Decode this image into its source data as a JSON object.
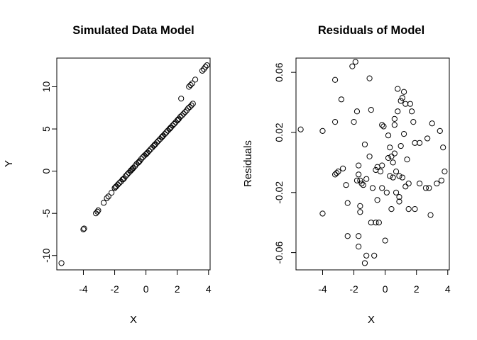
{
  "chart_data": [
    {
      "type": "scatter",
      "title": "Simulated Data Model",
      "xlabel": "X",
      "ylabel": "Y",
      "xlim": [
        -5.7,
        4.1
      ],
      "ylim": [
        -11.7,
        13.4
      ],
      "xticks": [
        -4,
        -2,
        0,
        2,
        4
      ],
      "yticks": [
        -10,
        -5,
        0,
        5,
        10
      ],
      "xticklabels": [
        "-4",
        "-2",
        "0",
        "2",
        "4"
      ],
      "yticklabels": [
        "-10",
        "-5",
        "0",
        "5",
        "10"
      ],
      "grid": false,
      "points": [
        [
          -5.4,
          -10.9
        ],
        [
          -4.0,
          -6.9
        ],
        [
          -3.95,
          -6.8
        ],
        [
          -3.2,
          -5.0
        ],
        [
          -3.1,
          -4.8
        ],
        [
          -3.05,
          -4.65
        ],
        [
          -2.7,
          -3.75
        ],
        [
          -2.5,
          -3.2
        ],
        [
          -2.4,
          -3.0
        ],
        [
          -2.2,
          -2.55
        ],
        [
          -2.0,
          -2.0
        ],
        [
          -1.9,
          -1.8
        ],
        [
          -1.8,
          -1.6
        ],
        [
          -1.7,
          -1.4
        ],
        [
          -1.6,
          -1.25
        ],
        [
          -1.5,
          -1.0
        ],
        [
          -1.4,
          -0.85
        ],
        [
          -1.3,
          -0.6
        ],
        [
          -1.2,
          -0.4
        ],
        [
          -1.1,
          -0.2
        ],
        [
          -1.0,
          0.0
        ],
        [
          -0.9,
          0.2
        ],
        [
          -0.8,
          0.4
        ],
        [
          -0.7,
          0.6
        ],
        [
          -0.6,
          0.85
        ],
        [
          -0.5,
          1.0
        ],
        [
          -0.4,
          1.2
        ],
        [
          -0.3,
          1.45
        ],
        [
          -0.2,
          1.65
        ],
        [
          -0.1,
          1.85
        ],
        [
          0.0,
          2.0
        ],
        [
          0.1,
          2.2
        ],
        [
          0.2,
          2.4
        ],
        [
          0.3,
          2.6
        ],
        [
          0.4,
          2.8
        ],
        [
          0.5,
          3.0
        ],
        [
          0.6,
          3.2
        ],
        [
          0.7,
          3.4
        ],
        [
          0.8,
          3.6
        ],
        [
          0.9,
          3.8
        ],
        [
          1.0,
          4.0
        ],
        [
          1.1,
          4.2
        ],
        [
          1.2,
          4.4
        ],
        [
          1.3,
          4.6
        ],
        [
          1.4,
          4.8
        ],
        [
          1.5,
          5.0
        ],
        [
          1.6,
          5.2
        ],
        [
          1.7,
          5.4
        ],
        [
          1.8,
          5.6
        ],
        [
          1.9,
          5.8
        ],
        [
          2.0,
          6.0
        ],
        [
          2.1,
          6.2
        ],
        [
          2.2,
          6.45
        ],
        [
          2.3,
          6.6
        ],
        [
          2.4,
          6.8
        ],
        [
          2.5,
          7.0
        ],
        [
          2.6,
          7.2
        ],
        [
          2.7,
          7.45
        ],
        [
          2.8,
          7.6
        ],
        [
          2.9,
          7.8
        ],
        [
          3.0,
          8.0
        ],
        [
          2.25,
          8.6
        ],
        [
          2.75,
          10.0
        ],
        [
          2.85,
          10.2
        ],
        [
          2.95,
          10.4
        ],
        [
          3.15,
          10.85
        ],
        [
          3.6,
          11.9
        ],
        [
          3.7,
          12.1
        ],
        [
          3.8,
          12.35
        ],
        [
          3.9,
          12.55
        ],
        [
          -1.45,
          -0.95
        ],
        [
          -0.95,
          0.1
        ],
        [
          -0.45,
          1.1
        ],
        [
          0.05,
          2.1
        ],
        [
          0.55,
          3.1
        ],
        [
          1.05,
          4.1
        ],
        [
          1.55,
          5.1
        ],
        [
          2.05,
          6.1
        ],
        [
          -1.95,
          -1.9
        ],
        [
          -0.85,
          0.3
        ]
      ]
    },
    {
      "type": "scatter",
      "title": "Residuals of Model",
      "xlabel": "X",
      "ylabel": "Residuals",
      "xlim": [
        -5.7,
        4.1
      ],
      "ylim": [
        -0.0715,
        0.0695
      ],
      "xticks": [
        -4,
        -2,
        0,
        2,
        4
      ],
      "yticks": [
        -0.06,
        -0.02,
        0.02,
        0.06
      ],
      "xticklabels": [
        "-4",
        "-2",
        "0",
        "2",
        "4"
      ],
      "yticklabels": [
        "-0.06",
        "-0.02",
        "0.02",
        "0.06"
      ],
      "grid": false,
      "points": [
        [
          -5.4,
          0.022
        ],
        [
          -4.0,
          0.021
        ],
        [
          -4.0,
          -0.034
        ],
        [
          -3.2,
          0.055
        ],
        [
          -3.2,
          0.027
        ],
        [
          -3.2,
          -0.008
        ],
        [
          -3.1,
          -0.007
        ],
        [
          -3.0,
          -0.006
        ],
        [
          -2.8,
          0.042
        ],
        [
          -2.7,
          -0.004
        ],
        [
          -2.5,
          -0.015
        ],
        [
          -2.4,
          -0.027
        ],
        [
          -2.4,
          -0.049
        ],
        [
          -2.1,
          0.064
        ],
        [
          -2.0,
          0.027
        ],
        [
          -1.9,
          0.067
        ],
        [
          -1.8,
          0.034
        ],
        [
          -1.8,
          -0.012
        ],
        [
          -1.7,
          -0.002
        ],
        [
          -1.7,
          -0.008
        ],
        [
          -1.6,
          -0.012
        ],
        [
          -1.6,
          -0.029
        ],
        [
          -1.6,
          -0.033
        ],
        [
          -1.7,
          -0.049
        ],
        [
          -1.7,
          -0.056
        ],
        [
          -1.5,
          -0.014
        ],
        [
          -1.4,
          -0.015
        ],
        [
          -1.3,
          -0.067
        ],
        [
          -1.2,
          -0.011
        ],
        [
          -1.2,
          -0.062
        ],
        [
          -1.0,
          0.056
        ],
        [
          -1.0,
          0.004
        ],
        [
          -0.9,
          -0.04
        ],
        [
          -0.8,
          -0.017
        ],
        [
          -0.7,
          -0.062
        ],
        [
          -0.6,
          -0.04
        ],
        [
          -0.5,
          -0.025
        ],
        [
          -0.5,
          -0.003
        ],
        [
          -0.4,
          -0.04
        ],
        [
          -0.3,
          -0.006
        ],
        [
          -0.2,
          0.025
        ],
        [
          -0.2,
          -0.002
        ],
        [
          -0.1,
          0.024
        ],
        [
          0.0,
          -0.052
        ],
        [
          -0.2,
          -0.017
        ],
        [
          0.1,
          -0.02
        ],
        [
          0.2,
          0.003
        ],
        [
          0.3,
          -0.009
        ],
        [
          0.3,
          0.01
        ],
        [
          0.4,
          0.004
        ],
        [
          0.4,
          -0.031
        ],
        [
          0.5,
          0.0
        ],
        [
          0.5,
          -0.01
        ],
        [
          0.6,
          0.006
        ],
        [
          0.6,
          0.025
        ],
        [
          0.7,
          -0.006
        ],
        [
          0.7,
          -0.02
        ],
        [
          0.8,
          0.034
        ],
        [
          0.8,
          0.049
        ],
        [
          0.9,
          -0.009
        ],
        [
          0.9,
          -0.023
        ],
        [
          0.9,
          -0.026
        ],
        [
          1.0,
          0.041
        ],
        [
          1.0,
          0.011
        ],
        [
          1.1,
          0.043
        ],
        [
          1.1,
          -0.01
        ],
        [
          1.2,
          0.047
        ],
        [
          1.3,
          0.039
        ],
        [
          1.3,
          -0.016
        ],
        [
          1.4,
          0.002
        ],
        [
          1.5,
          -0.014
        ],
        [
          1.5,
          -0.031
        ],
        [
          1.6,
          0.039
        ],
        [
          1.7,
          0.034
        ],
        [
          1.8,
          0.027
        ],
        [
          1.9,
          0.013
        ],
        [
          1.9,
          -0.031
        ],
        [
          2.2,
          0.013
        ],
        [
          2.2,
          -0.014
        ],
        [
          2.6,
          -0.017
        ],
        [
          2.7,
          0.016
        ],
        [
          2.8,
          -0.017
        ],
        [
          2.9,
          -0.035
        ],
        [
          3.0,
          0.026
        ],
        [
          3.3,
          -0.014
        ],
        [
          3.5,
          0.021
        ],
        [
          3.6,
          -0.012
        ],
        [
          3.7,
          0.01
        ],
        [
          3.8,
          -0.006
        ],
        [
          -0.6,
          -0.005
        ],
        [
          0.2,
          0.018
        ],
        [
          -1.3,
          0.012
        ],
        [
          1.2,
          0.019
        ],
        [
          -0.9,
          0.035
        ],
        [
          0.6,
          0.029
        ]
      ]
    }
  ]
}
